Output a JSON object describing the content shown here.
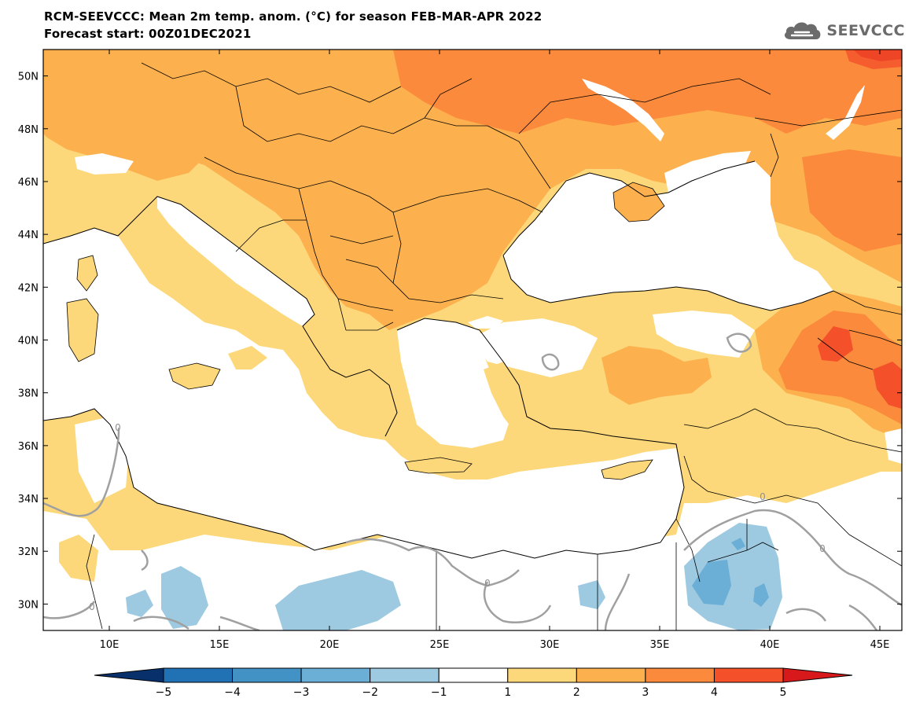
{
  "title_line1": "RCM-SEEVCCC: Mean 2m temp. anom. (°C) for season FEB-MAR-APR 2022",
  "title_line2": "Forecast start: 00Z01DEC2021",
  "logo_text": "SEEVCCC",
  "map": {
    "lon_range": [
      7,
      46
    ],
    "lat_range": [
      29,
      51
    ],
    "lat_ticks": [
      "50N",
      "48N",
      "46N",
      "44N",
      "42N",
      "40N",
      "38N",
      "36N",
      "34N",
      "32N",
      "30N"
    ],
    "lon_ticks": [
      "10E",
      "15E",
      "20E",
      "25E",
      "30E",
      "35E",
      "40E",
      "45E"
    ],
    "contour_label": "0"
  },
  "colorbar": {
    "ticks": [
      "−5",
      "−4",
      "−3",
      "−2",
      "−1",
      "1",
      "2",
      "3",
      "4",
      "5"
    ],
    "colors": [
      "#08306b",
      "#2171b5",
      "#4292c6",
      "#6baed6",
      "#9ecae1",
      "#ffffff",
      "#fdd87a",
      "#fcb04e",
      "#fb8a3c",
      "#f4502a",
      "#d7191c"
    ],
    "extend": "both"
  },
  "colors": {
    "ocean": "#ffffff",
    "anom_1_2": "#fdd87a",
    "anom_2_3": "#fcb04e",
    "anom_3_4": "#fb8a3c",
    "anom_4_5": "#f4502a",
    "anom_gt5": "#d7191c",
    "anom_m1_m2": "#9ecae1",
    "anom_m2_m3": "#6baed6",
    "border": "#000000",
    "contour_zero": "#a0a0a0"
  }
}
